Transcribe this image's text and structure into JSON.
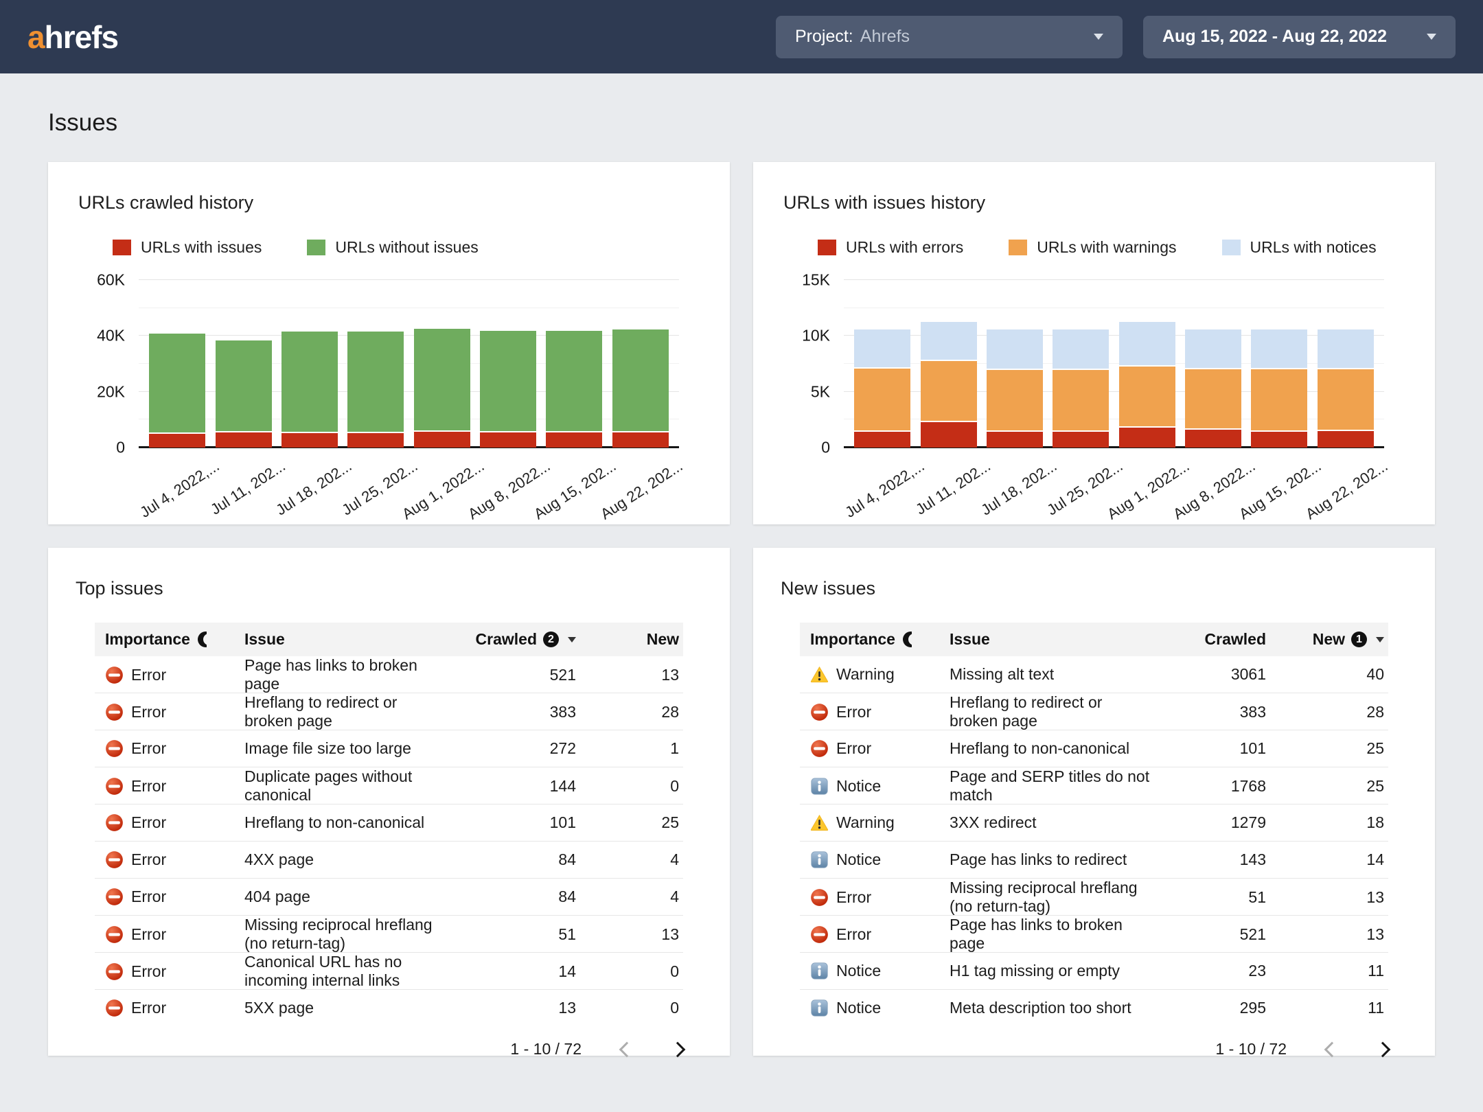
{
  "topbar": {
    "logo": {
      "accent": "a",
      "rest": "hrefs",
      "accent_color": "#ef9031"
    },
    "project": {
      "prefix": "Project:",
      "value": "Ahrefs"
    },
    "date_range": "Aug 15, 2022 - Aug 22, 2022",
    "bar_color": "#2e3a52",
    "control_color": "#4f5b72"
  },
  "page": {
    "title": "Issues"
  },
  "chart_data": [
    {
      "type": "bar",
      "stacked": true,
      "title": "URLs crawled history",
      "legend_position": "top",
      "grid": true,
      "categories": [
        "Jul 4, 2022,...",
        "Jul 11, 202...",
        "Jul 18, 202...",
        "Jul 25, 202...",
        "Aug 1, 2022...",
        "Aug 8, 2022...",
        "Aug 15, 202...",
        "Aug 22, 202..."
      ],
      "series": [
        {
          "name": "URLs with issues",
          "color": "#c42d16",
          "values": [
            5500,
            6000,
            5700,
            5600,
            6100,
            6000,
            6000,
            6000
          ]
        },
        {
          "name": "URLs without issues",
          "color": "#6fac5e",
          "values": [
            35500,
            32500,
            35800,
            35900,
            36400,
            36000,
            36000,
            36500
          ]
        }
      ],
      "ylim": [
        0,
        60000
      ],
      "yticks": [
        {
          "label": "60K",
          "value": 60000
        },
        {
          "label": "40K",
          "value": 40000
        },
        {
          "label": "20K",
          "value": 20000
        },
        {
          "label": "0",
          "value": 0
        }
      ],
      "minor_gridlines": [
        50000,
        30000,
        10000
      ]
    },
    {
      "type": "bar",
      "stacked": true,
      "title": "URLs with issues history",
      "legend_position": "top",
      "grid": true,
      "categories": [
        "Jul 4, 2022,...",
        "Jul 11, 202...",
        "Jul 18, 202...",
        "Jul 25, 202...",
        "Aug 1, 2022...",
        "Aug 8, 2022...",
        "Aug 15, 202...",
        "Aug 22, 202..."
      ],
      "series": [
        {
          "name": "URLs with errors",
          "color": "#c42d16",
          "values": [
            1550,
            2400,
            1550,
            1550,
            1900,
            1750,
            1550,
            1600
          ]
        },
        {
          "name": "URLs with warnings",
          "color": "#f0a24e",
          "values": [
            5650,
            5500,
            5550,
            5550,
            5500,
            5400,
            5600,
            5550
          ]
        },
        {
          "name": "URLs with notices",
          "color": "#cfe0f3",
          "values": [
            3400,
            3400,
            3500,
            3500,
            3900,
            3450,
            3450,
            3450
          ]
        }
      ],
      "ylim": [
        0,
        15000
      ],
      "yticks": [
        {
          "label": "15K",
          "value": 15000
        },
        {
          "label": "10K",
          "value": 10000
        },
        {
          "label": "5K",
          "value": 5000
        },
        {
          "label": "0",
          "value": 0
        }
      ],
      "minor_gridlines": [
        12500,
        7500,
        2500
      ]
    }
  ],
  "tables": {
    "top_issues": {
      "title": "Top issues",
      "columns": {
        "importance": "Importance",
        "issue": "Issue",
        "crawled": "Crawled",
        "new": "New"
      },
      "sort": {
        "column": "crawled",
        "badge": "2"
      },
      "rows": [
        {
          "severity": "error",
          "severity_label": "Error",
          "issue": "Page has links to broken page",
          "crawled": "521",
          "new": "13"
        },
        {
          "severity": "error",
          "severity_label": "Error",
          "issue": "Hreflang to redirect or broken page",
          "crawled": "383",
          "new": "28"
        },
        {
          "severity": "error",
          "severity_label": "Error",
          "issue": "Image file size too large",
          "crawled": "272",
          "new": "1"
        },
        {
          "severity": "error",
          "severity_label": "Error",
          "issue": "Duplicate pages without canonical",
          "crawled": "144",
          "new": "0"
        },
        {
          "severity": "error",
          "severity_label": "Error",
          "issue": "Hreflang to non-canonical",
          "crawled": "101",
          "new": "25"
        },
        {
          "severity": "error",
          "severity_label": "Error",
          "issue": "4XX page",
          "crawled": "84",
          "new": "4"
        },
        {
          "severity": "error",
          "severity_label": "Error",
          "issue": "404 page",
          "crawled": "84",
          "new": "4"
        },
        {
          "severity": "error",
          "severity_label": "Error",
          "issue": "Missing reciprocal hreflang (no return-tag)",
          "crawled": "51",
          "new": "13"
        },
        {
          "severity": "error",
          "severity_label": "Error",
          "issue": "Canonical URL has no incoming internal links",
          "crawled": "14",
          "new": "0"
        },
        {
          "severity": "error",
          "severity_label": "Error",
          "issue": "5XX page",
          "crawled": "13",
          "new": "0"
        }
      ],
      "pagination": {
        "range": "1 - 10 / 72",
        "prev_enabled": false,
        "next_enabled": true
      }
    },
    "new_issues": {
      "title": "New issues",
      "columns": {
        "importance": "Importance",
        "issue": "Issue",
        "crawled": "Crawled",
        "new": "New"
      },
      "sort": {
        "column": "new",
        "badge": "1"
      },
      "rows": [
        {
          "severity": "warning",
          "severity_label": "Warning",
          "issue": "Missing alt text",
          "crawled": "3061",
          "new": "40"
        },
        {
          "severity": "error",
          "severity_label": "Error",
          "issue": "Hreflang to redirect or broken page",
          "crawled": "383",
          "new": "28"
        },
        {
          "severity": "error",
          "severity_label": "Error",
          "issue": "Hreflang to non-canonical",
          "crawled": "101",
          "new": "25"
        },
        {
          "severity": "notice",
          "severity_label": "Notice",
          "issue": "Page and SERP titles do not match",
          "crawled": "1768",
          "new": "25"
        },
        {
          "severity": "warning",
          "severity_label": "Warning",
          "issue": "3XX redirect",
          "crawled": "1279",
          "new": "18"
        },
        {
          "severity": "notice",
          "severity_label": "Notice",
          "issue": "Page has links to redirect",
          "crawled": "143",
          "new": "14"
        },
        {
          "severity": "error",
          "severity_label": "Error",
          "issue": "Missing reciprocal hreflang (no return-tag)",
          "crawled": "51",
          "new": "13"
        },
        {
          "severity": "error",
          "severity_label": "Error",
          "issue": "Page has links to broken page",
          "crawled": "521",
          "new": "13"
        },
        {
          "severity": "notice",
          "severity_label": "Notice",
          "issue": "H1 tag missing or empty",
          "crawled": "23",
          "new": "11"
        },
        {
          "severity": "notice",
          "severity_label": "Notice",
          "issue": "Meta description too short",
          "crawled": "295",
          "new": "11"
        }
      ],
      "pagination": {
        "range": "1 - 10 / 72",
        "prev_enabled": false,
        "next_enabled": true
      }
    }
  }
}
